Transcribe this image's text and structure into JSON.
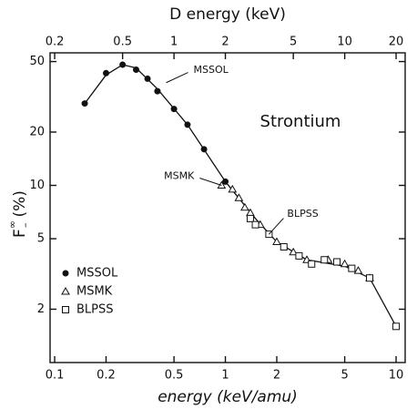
{
  "chart_data": {
    "type": "scatter",
    "title": "Strontium",
    "xlabel": "energy (keV/amu)",
    "x2label": "D energy (keV)",
    "ylabel": {
      "main": "F",
      "sup": "∞",
      "sub": "–",
      "unit": "(%)"
    },
    "log_x": true,
    "log_y": true,
    "xlim": [
      0.094,
      11.3
    ],
    "x2lim": [
      0.188,
      22.6
    ],
    "ylim": [
      1,
      56
    ],
    "xticks": [
      0.1,
      0.2,
      0.5,
      1,
      2,
      5,
      10
    ],
    "x2ticks": [
      0.2,
      0.5,
      1,
      2,
      5,
      10,
      20
    ],
    "yticks": [
      2,
      5,
      10,
      20,
      50
    ],
    "series": [
      {
        "name": "MSSOL",
        "marker": "filled-circle",
        "color": "#111",
        "x": [
          0.15,
          0.2,
          0.25,
          0.3,
          0.35,
          0.4,
          0.5,
          0.6,
          0.75,
          1.0
        ],
        "values": [
          29,
          43,
          48,
          45,
          40,
          34,
          27,
          22,
          16,
          10.5
        ]
      },
      {
        "name": "MSMK",
        "marker": "open-triangle",
        "color": "#111",
        "x": [
          0.95,
          1.1,
          1.2,
          1.3,
          1.4,
          1.6,
          2,
          2.5,
          3,
          4,
          5,
          6,
          7
        ],
        "values": [
          10,
          9.5,
          8.5,
          7.5,
          7,
          6,
          4.8,
          4.2,
          3.8,
          3.8,
          3.6,
          3.3,
          3
        ]
      },
      {
        "name": "BLPSS",
        "marker": "open-square",
        "color": "#111",
        "x": [
          1.4,
          1.5,
          1.8,
          2.2,
          2.7,
          3.2,
          3.8,
          4.5,
          5.5,
          7,
          10
        ],
        "values": [
          6.5,
          6,
          5.3,
          4.5,
          4,
          3.6,
          3.8,
          3.7,
          3.4,
          3,
          1.6
        ]
      }
    ],
    "curve": {
      "x": [
        0.15,
        0.2,
        0.25,
        0.3,
        0.4,
        0.6,
        1,
        1.5,
        2,
        3,
        5,
        7,
        10
      ],
      "values": [
        29,
        42,
        48,
        46,
        35,
        22,
        10.5,
        6.5,
        4.8,
        3.8,
        3.5,
        3,
        1.6
      ]
    },
    "annotations": [
      {
        "text": "MSSOL",
        "x": 0.45,
        "y": 38
      },
      {
        "text": "MSMK",
        "x": 0.95,
        "y": 10
      },
      {
        "text": "BLPSS",
        "x": 1.8,
        "y": 5.3
      }
    ]
  }
}
